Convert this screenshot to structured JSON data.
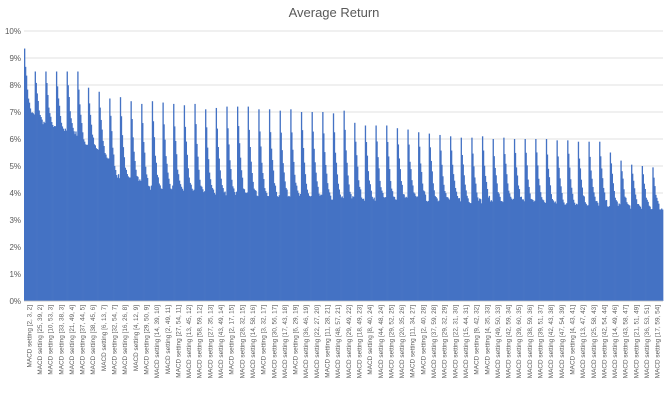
{
  "chart_data": {
    "type": "bar",
    "title": "Average Return",
    "xlabel": "",
    "ylabel": "",
    "ylim": [
      0,
      10
    ],
    "y_unit": "%",
    "y_ticks": [
      "0%",
      "1%",
      "2%",
      "3%",
      "4%",
      "5%",
      "6%",
      "7%",
      "8%",
      "9%",
      "10%"
    ],
    "grid": true,
    "bar_color": "#4472C4",
    "gridline_color": "#D9D9D9",
    "x_tick_labels": [
      "MACD setting [2, 3, 2]",
      "MACD setting [25, 39, 2]",
      "MACD setting [10, 53, 3]",
      "MACD setting [33, 38, 3]",
      "MACD setting [21, 49, 4]",
      "MACD setting [37, 44, 5]",
      "MACD setting [38, 45, 6]",
      "MACD setting [6, 13, 7]",
      "MACD setting [32, 54, 7]",
      "MACD setting [16, 26, 8]",
      "MACD setting [4, 12, 9]",
      "MACD setting [29, 50, 9]",
      "MACD setting [14, 39, 10]",
      "MACD setting [2, 49, 11]",
      "MACD setting [27, 54, 11]",
      "MACD setting [13, 45, 12]",
      "MACD setting [58, 59, 12]",
      "MACD setting [27, 35, 13]",
      "MACD setting [43, 49, 14]",
      "MACD setting [2, 17, 15]",
      "MACD setting [28, 32, 15]",
      "MACD setting [14, 58, 16]",
      "MACD setting [3, 32, 17]",
      "MACD setting [30, 56, 17]",
      "MACD setting [17, 43, 18]",
      "MACD setting [6, 29, 19]",
      "MACD setting [36, 46, 19]",
      "MACD setting [22, 27, 20]",
      "MACD setting [11, 28, 21]",
      "MACD setting [48, 57, 21]",
      "MACD setting [29, 49, 22]",
      "MACD setting [18, 49, 23]",
      "MACD setting [8, 40, 24]",
      "MACD setting [44, 48, 24]",
      "MACD setting [29, 52, 25]",
      "MACD setting [20, 35, 26]",
      "MACD setting [11, 34, 27]",
      "MACD setting [2, 40, 28]",
      "MACD setting [37, 59, 28]",
      "MACD setting [29, 32, 29]",
      "MACD setting [22, 31, 30]",
      "MACD setting [15, 44, 31]",
      "MACD setting [9, 42, 32]",
      "MACD setting [4, 35, 33]",
      "MACD setting [49, 50, 33]",
      "MACD setting [42, 59, 34]",
      "MACD setting [39, 60, 35]",
      "MACD setting [38, 59, 36]",
      "MACD setting [39, 51, 37]",
      "MACD setting [42, 43, 38]",
      "MACD setting [47, 54, 39]",
      "MACD setting [4, 43, 41]",
      "MACD setting [13, 47, 42]",
      "MACD setting [25, 58, 43]",
      "MACD setting [42, 54, 44]",
      "MACD setting [14, 49, 46]",
      "MACD setting [43, 58, 47]",
      "MACD setting [21, 51, 49]",
      "MACD setting [36, 53, 51]",
      "MACD setting [17, 59, 54]"
    ],
    "series": [
      {
        "envelope_peaks": [
          9.35,
          8.5,
          8.5,
          8.5,
          8.5,
          8.5,
          7.9,
          7.75,
          7.5,
          7.55,
          7.4,
          7.3,
          7.4,
          7.35,
          7.3,
          7.25,
          7.3,
          7.1,
          7.15,
          7.2,
          7.2,
          7.2,
          7.1,
          7.1,
          7.05,
          7.1,
          7.0,
          7.0,
          7.0,
          6.95,
          7.05,
          6.6,
          6.5,
          6.5,
          6.5,
          6.4,
          6.35,
          6.25,
          6.2,
          6.15,
          6.1,
          6.05,
          6.05,
          6.1,
          6.0,
          6.05,
          6.0,
          6.0,
          6.0,
          6.0,
          5.95,
          5.95,
          5.9,
          5.9,
          5.9,
          5.5,
          5.2,
          5.05,
          5.0,
          4.95
        ],
        "envelope_troughs": [
          6.9,
          6.6,
          6.4,
          6.3,
          6.2,
          5.8,
          5.6,
          5.3,
          4.6,
          4.5,
          4.45,
          4.2,
          4.2,
          4.2,
          4.1,
          4.1,
          4.0,
          4.0,
          4.0,
          4.0,
          3.95,
          3.95,
          3.9,
          3.9,
          3.9,
          3.9,
          3.85,
          3.85,
          3.8,
          3.8,
          3.8,
          3.8,
          3.8,
          3.8,
          3.8,
          3.8,
          3.8,
          3.75,
          3.75,
          3.75,
          3.75,
          3.7,
          3.7,
          3.7,
          3.7,
          3.7,
          3.7,
          3.65,
          3.65,
          3.6,
          3.6,
          3.6,
          3.6,
          3.6,
          3.55,
          3.55,
          3.5,
          3.5,
          3.45,
          3.4
        ]
      }
    ]
  }
}
